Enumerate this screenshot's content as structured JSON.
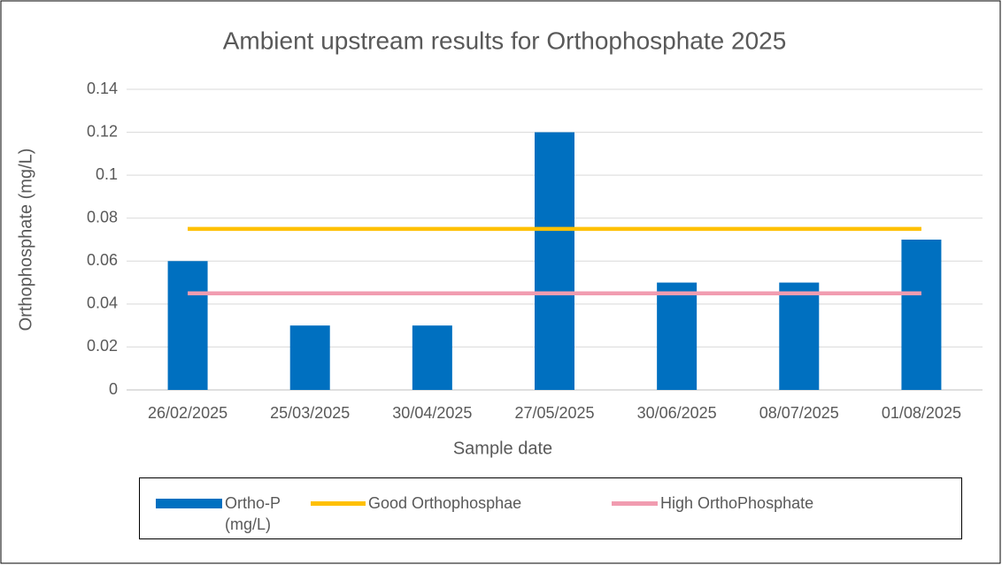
{
  "chart_data": {
    "type": "bar",
    "title": "Ambient upstream results for Orthophosphate 2025",
    "x_label": "Sample date",
    "y_label": "Orthophosphate (mg/L)",
    "categories": [
      "26/02/2025",
      "25/03/2025",
      "30/04/2025",
      "27/05/2025",
      "30/06/2025",
      "08/07/2025",
      "01/08/2025"
    ],
    "series": [
      {
        "name": "Ortho-P (mg/L)",
        "type": "bar",
        "color": "#0070c0",
        "values": [
          0.06,
          0.03,
          0.03,
          0.12,
          0.05,
          0.05,
          0.07
        ]
      },
      {
        "name": "Good Orthophosphae",
        "type": "line",
        "color": "#ffc000",
        "values": [
          0.075,
          0.075,
          0.075,
          0.075,
          0.075,
          0.075,
          0.075
        ]
      },
      {
        "name": "High OrthoPhosphate",
        "type": "line",
        "color": "#f19cb0",
        "values": [
          0.045,
          0.045,
          0.045,
          0.045,
          0.045,
          0.045,
          0.045
        ]
      }
    ],
    "ylim": [
      0,
      0.14
    ],
    "yticks": [
      0,
      0.02,
      0.04,
      0.06,
      0.08,
      0.1,
      0.12,
      0.14
    ],
    "grid": true,
    "legend": "bottom"
  }
}
